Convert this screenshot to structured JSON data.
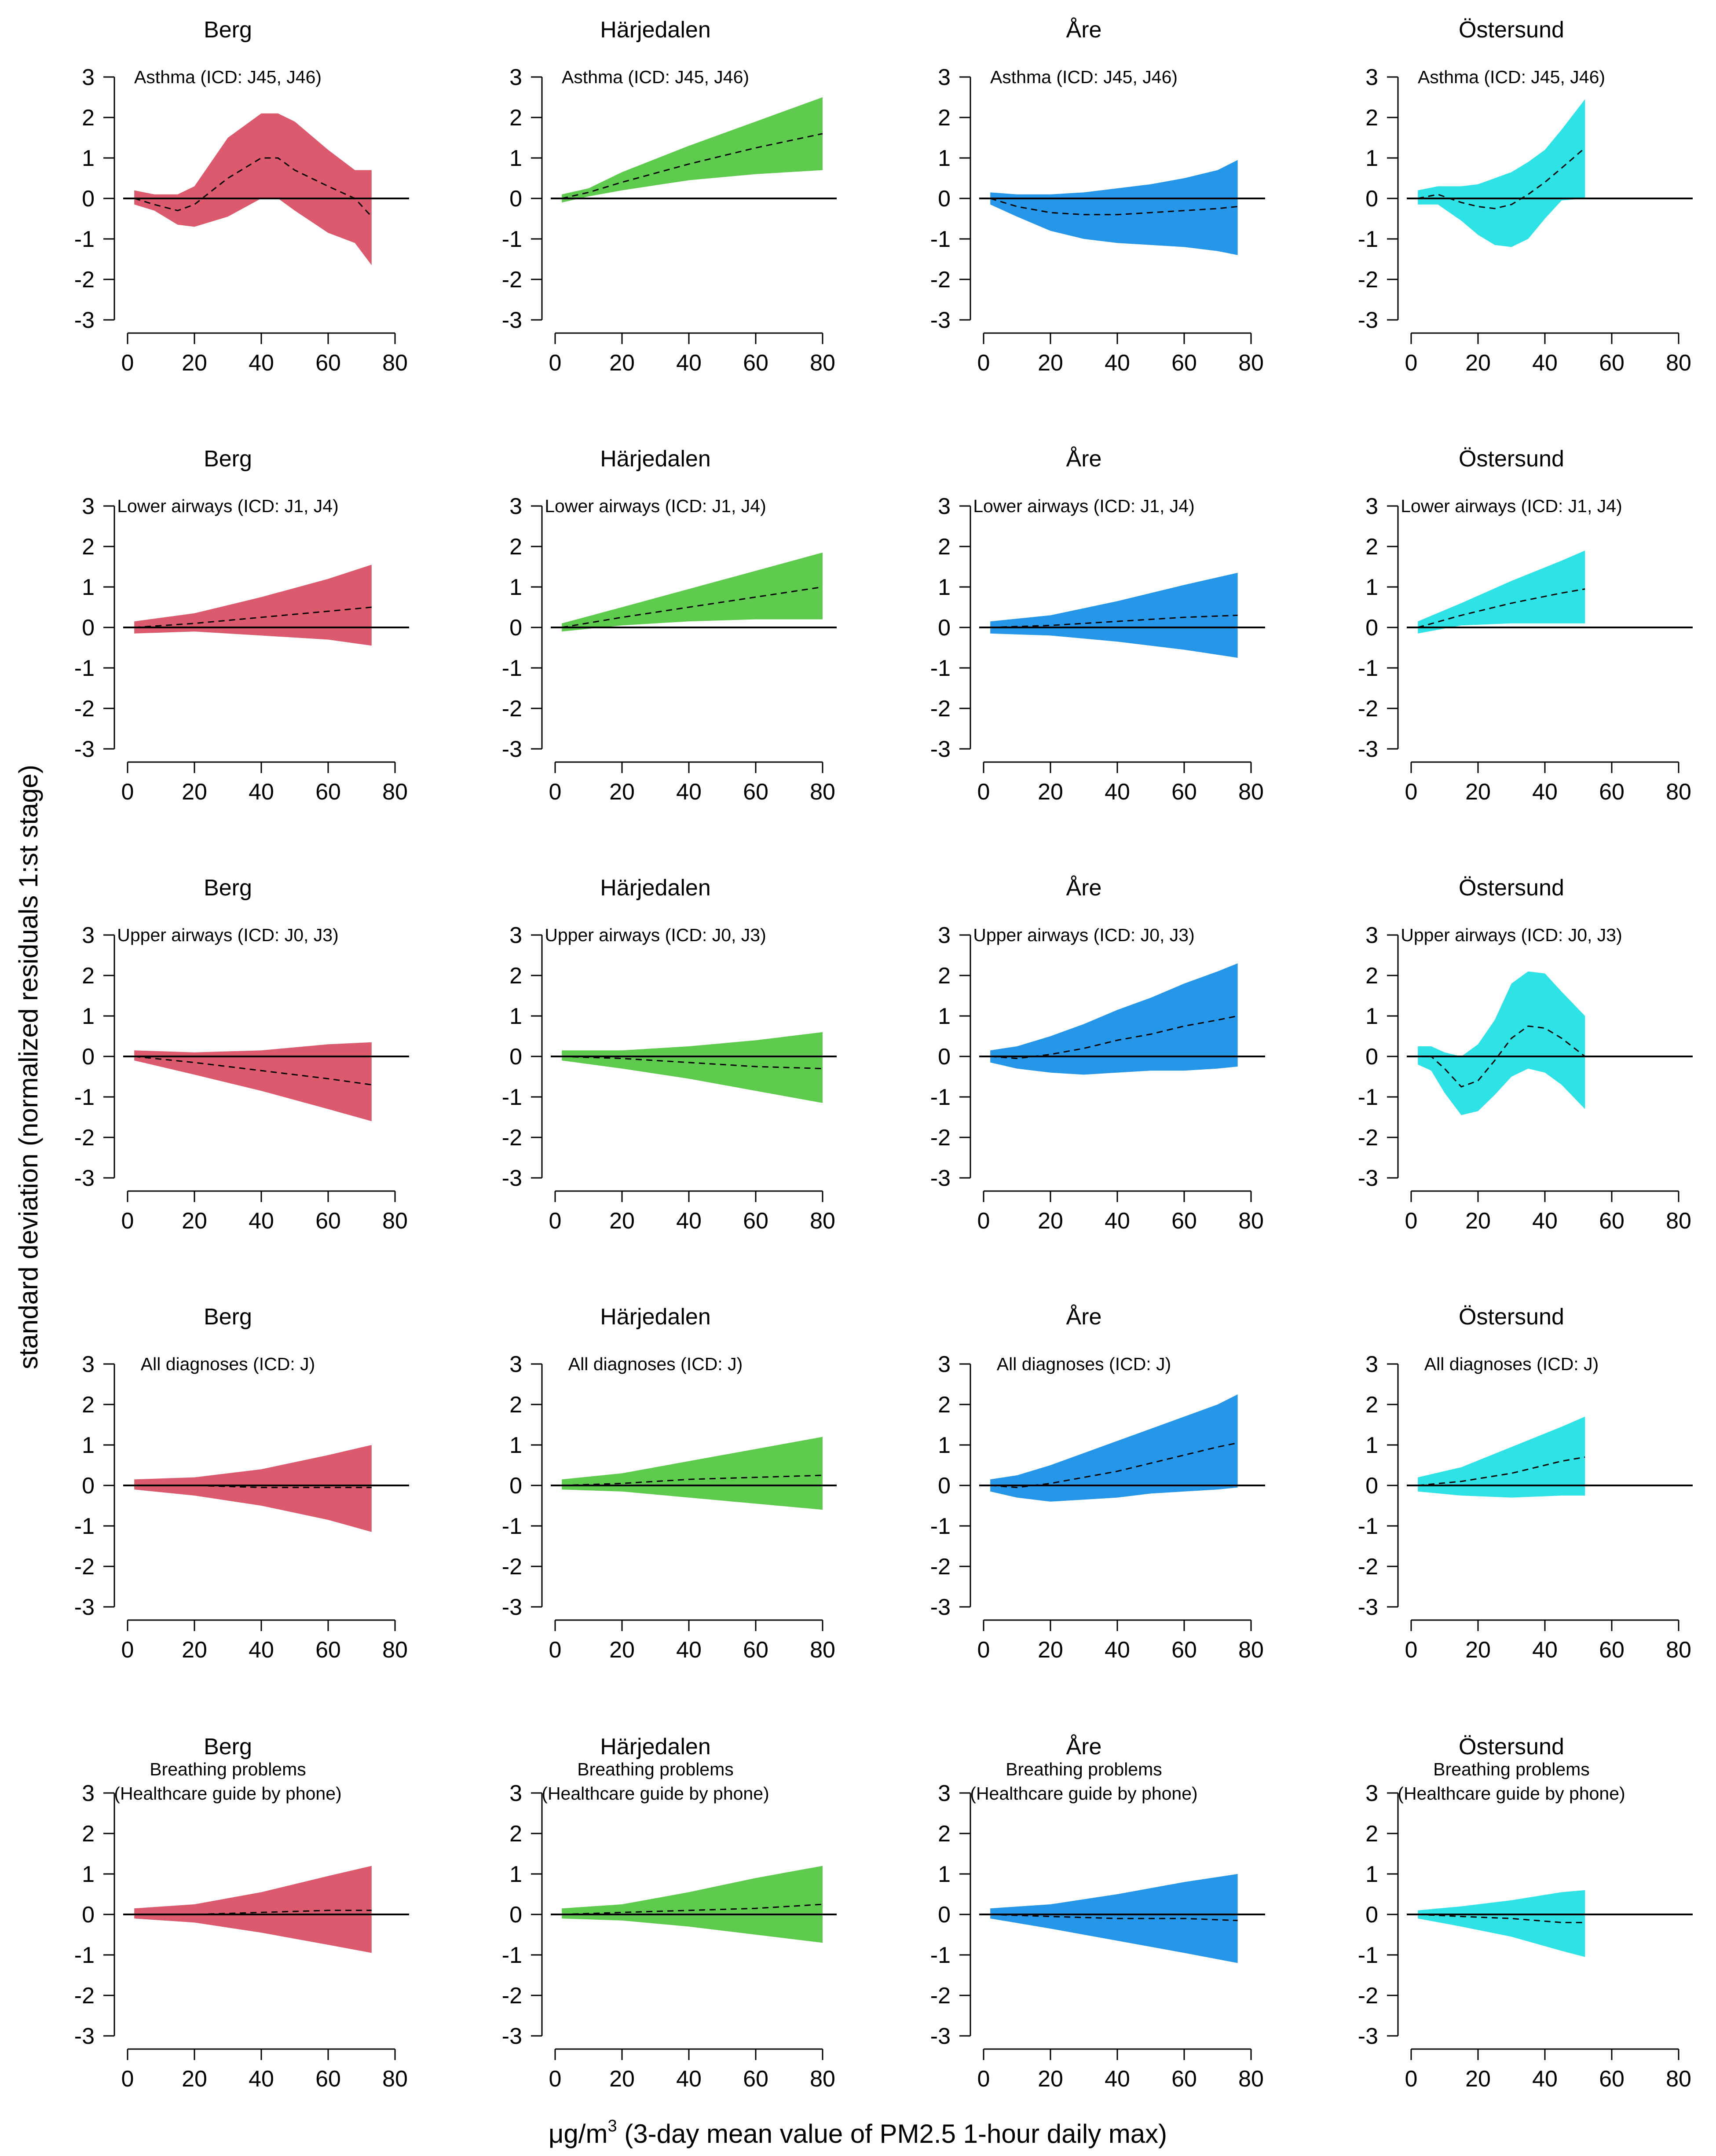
{
  "figure": {
    "ylabel": "standard deviation (normalized residuals 1:st stage)",
    "xlabel_prefix": "μg/m",
    "xlabel_superscript": "3",
    "xlabel_suffix": " (3-day mean value of PM2.5 1-hour daily max)",
    "colors": {
      "Berg": "#dc5a6e",
      "Härjedalen": "#5ecb4e",
      "Åre": "#2596e8",
      "Östersund": "#2ee2e6"
    }
  },
  "chart_data": {
    "type": "area",
    "description_grid": "5 rows (diagnosis groups) x 4 columns (municipalities)",
    "xlim": [
      0,
      80
    ],
    "ylim": [
      -3,
      3
    ],
    "xticks": [
      0,
      20,
      40,
      60,
      80
    ],
    "yticks": [
      3,
      2,
      1,
      0,
      -1,
      -2,
      -3
    ],
    "reference_line_y": 0,
    "municipalities": [
      "Berg",
      "Härjedalen",
      "Åre",
      "Östersund"
    ],
    "panels": [
      {
        "row": 0,
        "col": 0,
        "municipality": "Berg",
        "subtitle": [
          "Asthma (ICD: J45, J46)"
        ],
        "x": [
          2,
          8,
          15,
          20,
          30,
          40,
          45,
          50,
          60,
          68,
          73
        ],
        "mean": [
          0,
          -0.15,
          -0.3,
          -0.15,
          0.5,
          1.0,
          1.0,
          0.7,
          0.3,
          0,
          -0.45
        ],
        "lower": [
          -0.15,
          -0.3,
          -0.65,
          -0.7,
          -0.45,
          0,
          0,
          -0.3,
          -0.85,
          -1.1,
          -1.65
        ],
        "upper": [
          0.2,
          0.1,
          0.1,
          0.3,
          1.5,
          2.1,
          2.1,
          1.9,
          1.2,
          0.7,
          0.7
        ]
      },
      {
        "row": 0,
        "col": 1,
        "municipality": "Härjedalen",
        "subtitle": [
          "Asthma (ICD: J45, J46)"
        ],
        "x": [
          2,
          10,
          20,
          40,
          60,
          80
        ],
        "mean": [
          0,
          0.15,
          0.4,
          0.85,
          1.25,
          1.6
        ],
        "lower": [
          -0.1,
          0.05,
          0.2,
          0.45,
          0.6,
          0.7
        ],
        "upper": [
          0.1,
          0.25,
          0.65,
          1.3,
          1.9,
          2.5
        ]
      },
      {
        "row": 0,
        "col": 2,
        "municipality": "Åre",
        "subtitle": [
          "Asthma (ICD: J45, J46)"
        ],
        "x": [
          2,
          10,
          20,
          30,
          40,
          50,
          60,
          70,
          76
        ],
        "mean": [
          0,
          -0.2,
          -0.35,
          -0.4,
          -0.4,
          -0.35,
          -0.3,
          -0.25,
          -0.2
        ],
        "lower": [
          -0.15,
          -0.45,
          -0.8,
          -1.0,
          -1.1,
          -1.15,
          -1.2,
          -1.3,
          -1.4
        ],
        "upper": [
          0.15,
          0.1,
          0.1,
          0.15,
          0.25,
          0.35,
          0.5,
          0.7,
          0.95
        ]
      },
      {
        "row": 0,
        "col": 3,
        "municipality": "Östersund",
        "subtitle": [
          "Asthma (ICD: J45, J46)"
        ],
        "x": [
          2,
          8,
          15,
          20,
          25,
          30,
          35,
          40,
          45,
          52
        ],
        "mean": [
          0,
          0.1,
          -0.1,
          -0.2,
          -0.25,
          -0.15,
          0.1,
          0.4,
          0.75,
          1.25
        ],
        "lower": [
          -0.15,
          -0.15,
          -0.55,
          -0.9,
          -1.15,
          -1.2,
          -1.0,
          -0.5,
          -0.05,
          0
        ],
        "upper": [
          0.2,
          0.3,
          0.3,
          0.35,
          0.5,
          0.65,
          0.9,
          1.2,
          1.7,
          2.45
        ]
      },
      {
        "row": 1,
        "col": 0,
        "municipality": "Berg",
        "subtitle": [
          "Lower airways (ICD: J1, J4)"
        ],
        "x": [
          2,
          20,
          40,
          60,
          73
        ],
        "mean": [
          0,
          0.1,
          0.25,
          0.4,
          0.5
        ],
        "lower": [
          -0.15,
          -0.1,
          -0.2,
          -0.3,
          -0.45
        ],
        "upper": [
          0.15,
          0.35,
          0.75,
          1.2,
          1.55
        ]
      },
      {
        "row": 1,
        "col": 1,
        "municipality": "Härjedalen",
        "subtitle": [
          "Lower airways (ICD: J1, J4)"
        ],
        "x": [
          2,
          20,
          40,
          60,
          80
        ],
        "mean": [
          0,
          0.25,
          0.5,
          0.75,
          1.0
        ],
        "lower": [
          -0.1,
          0.05,
          0.15,
          0.2,
          0.2
        ],
        "upper": [
          0.1,
          0.5,
          0.95,
          1.4,
          1.85
        ]
      },
      {
        "row": 1,
        "col": 2,
        "municipality": "Åre",
        "subtitle": [
          "Lower airways (ICD: J1, J4)"
        ],
        "x": [
          2,
          20,
          40,
          60,
          76
        ],
        "mean": [
          0,
          0.05,
          0.15,
          0.25,
          0.3
        ],
        "lower": [
          -0.15,
          -0.2,
          -0.35,
          -0.55,
          -0.75
        ],
        "upper": [
          0.15,
          0.3,
          0.65,
          1.05,
          1.35
        ]
      },
      {
        "row": 1,
        "col": 3,
        "municipality": "Östersund",
        "subtitle": [
          "Lower airways (ICD: J1, J4)"
        ],
        "x": [
          2,
          15,
          30,
          45,
          52
        ],
        "mean": [
          0,
          0.3,
          0.6,
          0.85,
          0.95
        ],
        "lower": [
          -0.15,
          0.05,
          0.1,
          0.1,
          0.1
        ],
        "upper": [
          0.15,
          0.6,
          1.15,
          1.65,
          1.9
        ]
      },
      {
        "row": 2,
        "col": 0,
        "municipality": "Berg",
        "subtitle": [
          "Upper airways (ICD: J0, J3)"
        ],
        "x": [
          2,
          20,
          40,
          60,
          73
        ],
        "mean": [
          0,
          -0.15,
          -0.35,
          -0.55,
          -0.7
        ],
        "lower": [
          -0.1,
          -0.45,
          -0.85,
          -1.3,
          -1.6
        ],
        "upper": [
          0.15,
          0.1,
          0.15,
          0.3,
          0.35
        ]
      },
      {
        "row": 2,
        "col": 1,
        "municipality": "Härjedalen",
        "subtitle": [
          "Upper airways (ICD: J0, J3)"
        ],
        "x": [
          2,
          20,
          40,
          60,
          80
        ],
        "mean": [
          0,
          -0.05,
          -0.15,
          -0.25,
          -0.3
        ],
        "lower": [
          -0.1,
          -0.3,
          -0.55,
          -0.85,
          -1.15
        ],
        "upper": [
          0.15,
          0.15,
          0.25,
          0.4,
          0.6
        ]
      },
      {
        "row": 2,
        "col": 2,
        "municipality": "Åre",
        "subtitle": [
          "Upper airways (ICD: J0, J3)"
        ],
        "x": [
          2,
          10,
          20,
          30,
          40,
          50,
          60,
          70,
          76
        ],
        "mean": [
          0,
          -0.05,
          0.05,
          0.2,
          0.4,
          0.55,
          0.75,
          0.9,
          1.0
        ],
        "lower": [
          -0.15,
          -0.3,
          -0.4,
          -0.45,
          -0.4,
          -0.35,
          -0.35,
          -0.3,
          -0.25
        ],
        "upper": [
          0.15,
          0.25,
          0.5,
          0.8,
          1.15,
          1.45,
          1.8,
          2.1,
          2.3
        ]
      },
      {
        "row": 2,
        "col": 3,
        "municipality": "Östersund",
        "subtitle": [
          "Upper airways (ICD: J0, J3)"
        ],
        "x": [
          2,
          6,
          10,
          15,
          20,
          25,
          30,
          35,
          40,
          45,
          52
        ],
        "mean": [
          0,
          0,
          -0.3,
          -0.75,
          -0.6,
          -0.1,
          0.45,
          0.75,
          0.7,
          0.45,
          0
        ],
        "lower": [
          -0.2,
          -0.35,
          -0.9,
          -1.45,
          -1.35,
          -0.95,
          -0.5,
          -0.3,
          -0.4,
          -0.7,
          -1.3
        ],
        "upper": [
          0.25,
          0.25,
          0.1,
          0,
          0.3,
          0.9,
          1.8,
          2.1,
          2.05,
          1.6,
          1.0
        ]
      },
      {
        "row": 3,
        "col": 0,
        "municipality": "Berg",
        "subtitle": [
          "All diagnoses (ICD: J)"
        ],
        "x": [
          2,
          20,
          40,
          60,
          73
        ],
        "mean": [
          0,
          0,
          -0.05,
          -0.05,
          -0.05
        ],
        "lower": [
          -0.1,
          -0.25,
          -0.5,
          -0.85,
          -1.15
        ],
        "upper": [
          0.15,
          0.2,
          0.4,
          0.75,
          1.0
        ]
      },
      {
        "row": 3,
        "col": 1,
        "municipality": "Härjedalen",
        "subtitle": [
          "All diagnoses (ICD: J)"
        ],
        "x": [
          2,
          20,
          40,
          60,
          80
        ],
        "mean": [
          0,
          0.05,
          0.15,
          0.2,
          0.25
        ],
        "lower": [
          -0.1,
          -0.15,
          -0.3,
          -0.45,
          -0.6
        ],
        "upper": [
          0.15,
          0.3,
          0.6,
          0.9,
          1.2
        ]
      },
      {
        "row": 3,
        "col": 2,
        "municipality": "Åre",
        "subtitle": [
          "All diagnoses (ICD: J)"
        ],
        "x": [
          2,
          10,
          20,
          30,
          40,
          50,
          60,
          70,
          76
        ],
        "mean": [
          0,
          -0.05,
          0.05,
          0.2,
          0.35,
          0.55,
          0.75,
          0.95,
          1.05
        ],
        "lower": [
          -0.15,
          -0.3,
          -0.4,
          -0.35,
          -0.3,
          -0.2,
          -0.15,
          -0.1,
          -0.05
        ],
        "upper": [
          0.15,
          0.25,
          0.5,
          0.8,
          1.1,
          1.4,
          1.7,
          2.0,
          2.25
        ]
      },
      {
        "row": 3,
        "col": 3,
        "municipality": "Östersund",
        "subtitle": [
          "All diagnoses (ICD: J)"
        ],
        "x": [
          2,
          15,
          30,
          45,
          52
        ],
        "mean": [
          0,
          0.1,
          0.3,
          0.6,
          0.7
        ],
        "lower": [
          -0.15,
          -0.25,
          -0.3,
          -0.25,
          -0.25
        ],
        "upper": [
          0.2,
          0.45,
          0.95,
          1.45,
          1.7
        ]
      },
      {
        "row": 4,
        "col": 0,
        "municipality": "Berg",
        "subtitle": [
          "Breathing problems",
          "(Healthcare guide by phone)"
        ],
        "x": [
          2,
          20,
          40,
          60,
          73
        ],
        "mean": [
          0,
          0,
          0.05,
          0.1,
          0.1
        ],
        "lower": [
          -0.1,
          -0.2,
          -0.45,
          -0.75,
          -0.95
        ],
        "upper": [
          0.15,
          0.25,
          0.55,
          0.95,
          1.2
        ]
      },
      {
        "row": 4,
        "col": 1,
        "municipality": "Härjedalen",
        "subtitle": [
          "Breathing problems",
          "(Healthcare guide by phone)"
        ],
        "x": [
          2,
          20,
          40,
          60,
          80
        ],
        "mean": [
          0,
          0.05,
          0.1,
          0.15,
          0.25
        ],
        "lower": [
          -0.1,
          -0.15,
          -0.3,
          -0.5,
          -0.7
        ],
        "upper": [
          0.15,
          0.25,
          0.55,
          0.9,
          1.2
        ]
      },
      {
        "row": 4,
        "col": 2,
        "municipality": "Åre",
        "subtitle": [
          "Breathing problems",
          "(Healthcare guide by phone)"
        ],
        "x": [
          2,
          20,
          40,
          60,
          76
        ],
        "mean": [
          0,
          -0.05,
          -0.1,
          -0.1,
          -0.15
        ],
        "lower": [
          -0.1,
          -0.35,
          -0.65,
          -0.95,
          -1.2
        ],
        "upper": [
          0.15,
          0.25,
          0.5,
          0.8,
          1.0
        ]
      },
      {
        "row": 4,
        "col": 3,
        "municipality": "Östersund",
        "subtitle": [
          "Breathing problems",
          "(Healthcare guide by phone)"
        ],
        "x": [
          2,
          15,
          30,
          45,
          52
        ],
        "mean": [
          0,
          -0.05,
          -0.1,
          -0.2,
          -0.2
        ],
        "lower": [
          -0.1,
          -0.3,
          -0.55,
          -0.9,
          -1.05
        ],
        "upper": [
          0.1,
          0.2,
          0.35,
          0.55,
          0.6
        ]
      }
    ]
  }
}
